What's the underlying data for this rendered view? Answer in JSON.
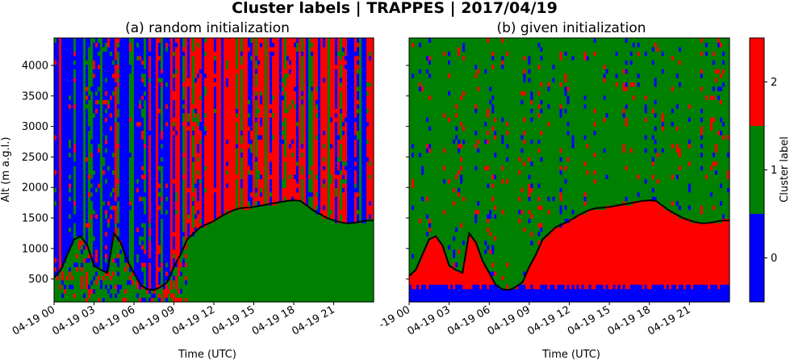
{
  "suptitle": "Cluster labels | TRAPPES | 2017/04/19",
  "colors": {
    "c0": "#0000ff",
    "c1": "#008000",
    "c2": "#ff0000",
    "boundary": "#000000"
  },
  "chart_data": [
    {
      "type": "heatmap",
      "title": "(a) random initialization",
      "xlabel": "Time (UTC)",
      "ylabel": "Alt (m a.g.l.)",
      "x_tick_labels": [
        "04-19 00",
        "04-19 03",
        "04-19 06",
        "04-19 09",
        "04-19 12",
        "04-19 15",
        "04-19 18",
        "04-19 21"
      ],
      "x_tick_hours": [
        0,
        3,
        6,
        9,
        12,
        15,
        18,
        21
      ],
      "xlim_hours": [
        0,
        24
      ],
      "y_ticks": [
        500,
        1000,
        1500,
        2000,
        2500,
        3000,
        3500,
        4000
      ],
      "ylim": [
        125,
        4450
      ],
      "boundary_layer_height": {
        "hours": [
          0,
          0.5,
          1,
          1.5,
          2,
          2.5,
          3,
          3.5,
          4,
          4.5,
          5,
          5.5,
          6,
          6.5,
          7,
          7.5,
          8,
          8.5,
          9,
          9.5,
          10,
          10.5,
          11,
          11.5,
          12,
          12.5,
          13,
          13.5,
          14,
          14.5,
          15,
          15.5,
          16,
          16.5,
          17,
          17.5,
          18,
          18.5,
          19,
          19.5,
          20,
          20.5,
          21,
          21.5,
          22,
          22.5,
          23,
          23.5,
          24
        ],
        "alt": [
          520,
          650,
          900,
          1150,
          1200,
          1050,
          720,
          650,
          600,
          1250,
          1100,
          800,
          600,
          400,
          330,
          320,
          370,
          450,
          700,
          900,
          1150,
          1250,
          1350,
          1400,
          1450,
          1520,
          1580,
          1630,
          1660,
          1670,
          1680,
          1700,
          1720,
          1740,
          1760,
          1780,
          1790,
          1780,
          1700,
          1620,
          1560,
          1500,
          1460,
          1430,
          1410,
          1420,
          1440,
          1460,
          1460
        ]
      }
    },
    {
      "type": "heatmap",
      "title": "(b) given initialization",
      "xlabel": "Time (UTC)",
      "x_tick_labels": [
        "-19 00",
        "04-19 03",
        "04-19 06",
        "04-19 09",
        "04-19 12",
        "04-19 15",
        "04-19 18",
        "04-19 21"
      ],
      "x_tick_hours": [
        0,
        3,
        6,
        9,
        12,
        15,
        18,
        21
      ],
      "xlim_hours": [
        0,
        24
      ],
      "y_ticks": [
        500,
        1000,
        1500,
        2000,
        2500,
        3000,
        3500,
        4000
      ],
      "ylim": [
        125,
        4450
      ],
      "boundary_layer_height": {
        "hours": [
          0,
          0.5,
          1,
          1.5,
          2,
          2.5,
          3,
          3.5,
          4,
          4.5,
          5,
          5.5,
          6,
          6.5,
          7,
          7.5,
          8,
          8.5,
          9,
          9.5,
          10,
          10.5,
          11,
          11.5,
          12,
          12.5,
          13,
          13.5,
          14,
          14.5,
          15,
          15.5,
          16,
          16.5,
          17,
          17.5,
          18,
          18.5,
          19,
          19.5,
          20,
          20.5,
          21,
          21.5,
          22,
          22.5,
          23,
          23.5,
          24
        ],
        "alt": [
          550,
          650,
          900,
          1150,
          1200,
          1050,
          720,
          650,
          600,
          1250,
          1100,
          800,
          600,
          400,
          330,
          320,
          370,
          450,
          700,
          900,
          1150,
          1250,
          1350,
          1400,
          1450,
          1520,
          1580,
          1630,
          1660,
          1670,
          1680,
          1700,
          1720,
          1740,
          1760,
          1780,
          1790,
          1780,
          1700,
          1620,
          1560,
          1500,
          1460,
          1430,
          1410,
          1420,
          1440,
          1460,
          1460
        ]
      }
    }
  ],
  "colorbar": {
    "label": "Cluster label",
    "tick_labels": [
      "0",
      "1",
      "2"
    ],
    "range": [
      -0.5,
      2.5
    ]
  }
}
